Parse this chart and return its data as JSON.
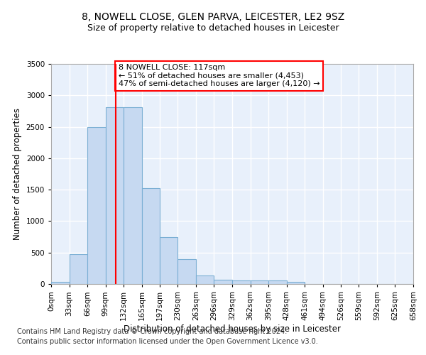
{
  "title_line1": "8, NOWELL CLOSE, GLEN PARVA, LEICESTER, LE2 9SZ",
  "title_line2": "Size of property relative to detached houses in Leicester",
  "xlabel": "Distribution of detached houses by size in Leicester",
  "ylabel": "Number of detached properties",
  "bin_labels": [
    "0sqm",
    "33sqm",
    "66sqm",
    "99sqm",
    "132sqm",
    "165sqm",
    "197sqm",
    "230sqm",
    "263sqm",
    "296sqm",
    "329sqm",
    "362sqm",
    "395sqm",
    "428sqm",
    "461sqm",
    "494sqm",
    "526sqm",
    "559sqm",
    "592sqm",
    "625sqm",
    "658sqm"
  ],
  "bin_edges": [
    0,
    33,
    66,
    99,
    132,
    165,
    197,
    230,
    263,
    296,
    329,
    362,
    395,
    428,
    461,
    494,
    526,
    559,
    592,
    625,
    658
  ],
  "bar_heights": [
    30,
    475,
    2500,
    2810,
    2810,
    1520,
    750,
    390,
    140,
    70,
    55,
    55,
    55,
    30,
    0,
    0,
    0,
    0,
    0,
    0
  ],
  "bar_color": "#c6d9f1",
  "bar_edgecolor": "#7bafd4",
  "vline_x": 117,
  "vline_color": "red",
  "ylim": [
    0,
    3500
  ],
  "yticks": [
    0,
    500,
    1000,
    1500,
    2000,
    2500,
    3000,
    3500
  ],
  "annotation_text": "8 NOWELL CLOSE: 117sqm\n← 51% of detached houses are smaller (4,453)\n47% of semi-detached houses are larger (4,120) →",
  "footer_line1": "Contains HM Land Registry data © Crown copyright and database right 2024.",
  "footer_line2": "Contains public sector information licensed under the Open Government Licence v3.0.",
  "bg_color": "#e8f0fb",
  "grid_color": "#ffffff",
  "title_fontsize": 10,
  "subtitle_fontsize": 9,
  "axis_label_fontsize": 8.5,
  "tick_fontsize": 7.5,
  "annotation_fontsize": 8,
  "footer_fontsize": 7
}
